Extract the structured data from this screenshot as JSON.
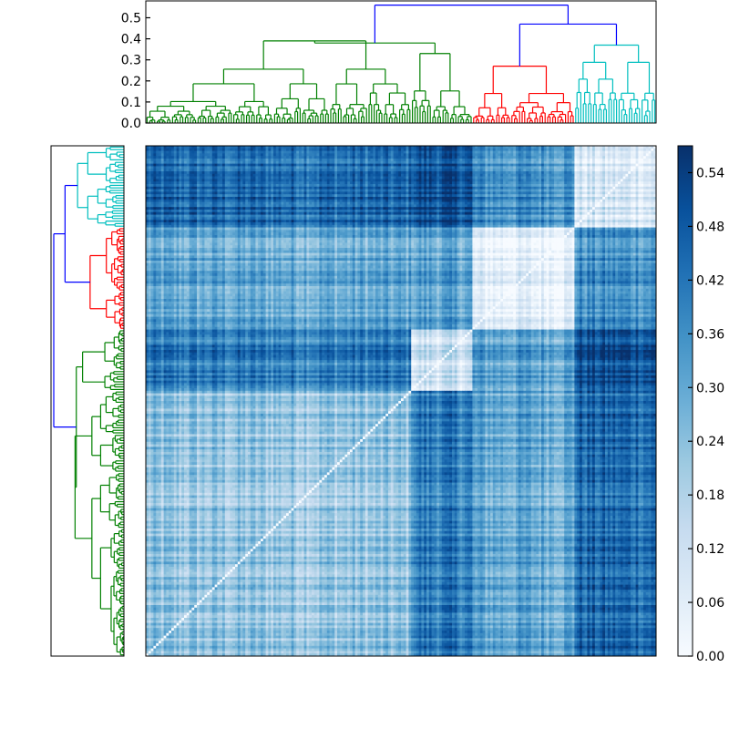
{
  "chart_data": {
    "type": "heatmap",
    "title": "",
    "xlabel": "",
    "ylabel": "",
    "description_colormap": "Blues",
    "matrix_size": 200,
    "clusters": [
      {
        "id": "A",
        "color": "#008000",
        "start": 0,
        "size": 104
      },
      {
        "id": "B",
        "color": "#008000",
        "start": 104,
        "size": 24
      },
      {
        "id": "C",
        "color": "#ff0000",
        "start": 128,
        "size": 40
      },
      {
        "id": "D",
        "color": "#00bfbf",
        "start": 168,
        "size": 32
      }
    ],
    "row_order_top_to_bottom": [
      "D",
      "C",
      "B",
      "A"
    ],
    "col_order_left_to_right": [
      "A",
      "B",
      "C",
      "D"
    ],
    "block_means": {
      "A-A": 0.22,
      "A-B": 0.4,
      "A-C": 0.3,
      "A-D": 0.44,
      "B-B": 0.12,
      "B-C": 0.32,
      "B-D": 0.5,
      "C-C": 0.06,
      "C-D": 0.36,
      "D-D": 0.09
    },
    "top_dendrogram": {
      "axis_ticks": [
        "0.0",
        "0.1",
        "0.2",
        "0.3",
        "0.4",
        "0.5"
      ],
      "ylim": [
        0,
        0.58
      ],
      "root_height": 0.56,
      "merges": [
        {
          "left": "A",
          "right": "B",
          "height": 0.38,
          "color": "#008000"
        },
        {
          "left": "C",
          "right": "D",
          "height": 0.47,
          "color": "#0000ff"
        },
        {
          "left": "AB",
          "right": "CD",
          "height": 0.56,
          "color": "#0000ff"
        }
      ],
      "cluster_heights": {
        "A": 0.39,
        "B": 0.33,
        "C": 0.27,
        "D": 0.37
      }
    },
    "colorbar": {
      "ticks": [
        "0.00",
        "0.06",
        "0.12",
        "0.18",
        "0.24",
        "0.30",
        "0.36",
        "0.42",
        "0.48",
        "0.54"
      ],
      "range": [
        0,
        0.57
      ]
    }
  }
}
